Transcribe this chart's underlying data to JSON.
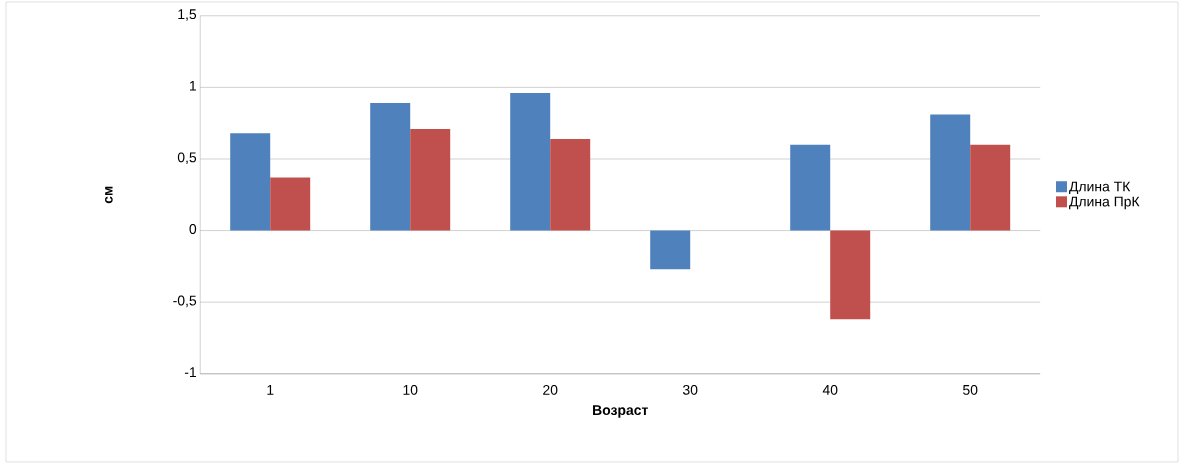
{
  "chart_data": {
    "type": "bar",
    "xlabel": "Возраст",
    "ylabel": "см",
    "categories": [
      "1",
      "10",
      "20",
      "30",
      "40",
      "50"
    ],
    "series": [
      {
        "name": "Длина ТК",
        "color": "#4f81bd",
        "values": [
          0.68,
          0.89,
          0.96,
          -0.27,
          0.6,
          0.81
        ]
      },
      {
        "name": "Длина ПрК",
        "color": "#c0504d",
        "values": [
          0.37,
          0.71,
          0.64,
          0,
          -0.62,
          0.6
        ]
      }
    ],
    "ylim": [
      -1,
      1.5
    ],
    "yticks": [
      {
        "value": -1,
        "label": "-1"
      },
      {
        "value": -0.5,
        "label": "-0,5"
      },
      {
        "value": 0,
        "label": "0"
      },
      {
        "value": 0.5,
        "label": "0,5"
      },
      {
        "value": 1,
        "label": "1"
      },
      {
        "value": 1.5,
        "label": "1,5"
      }
    ],
    "grid": "y",
    "legend": "right"
  }
}
